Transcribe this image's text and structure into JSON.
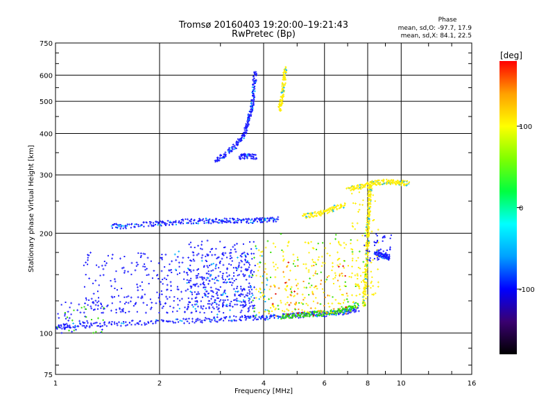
{
  "chart_data": {
    "type": "scatter",
    "title": "Tromsø 20160403 19:20:00–19:21:43",
    "subtitle": "RwPretec (Bp)",
    "xlabel": "Frequency [MHz]",
    "ylabel": "Stationary phase Virtual Height [km]",
    "xscale": "log",
    "yscale": "log",
    "xlim": [
      1,
      16
    ],
    "ylim": [
      75,
      750
    ],
    "xticks": [
      1,
      2,
      4,
      6,
      8,
      10,
      16
    ],
    "xtick_labels": [
      "1",
      "2",
      "4",
      "6",
      "8",
      "10",
      "16"
    ],
    "yticks": [
      75,
      100,
      200,
      300,
      400,
      500,
      600,
      750
    ],
    "ytick_labels": [
      "75",
      "100",
      "200",
      "300",
      "400",
      "500",
      "600",
      "750"
    ],
    "grid": true,
    "info": {
      "heading": "Phase",
      "line1": "mean, sd,O: -97.7, 17.9",
      "line2": "mean, sd,X:  84.1, 22.5"
    },
    "colorbar": {
      "label": "[deg]",
      "ticks": [
        100,
        0,
        -100
      ],
      "tick_labels": [
        "100",
        "0",
        "-100"
      ],
      "range": [
        -180,
        180
      ],
      "colormap": [
        "#000000",
        "#3a0070",
        "#0000ff",
        "#00a0ff",
        "#00ffff",
        "#00ff40",
        "#80ff00",
        "#ffff00",
        "#ffa000",
        "#ff0000"
      ]
    },
    "colors": {
      "blue": "#1a1aff",
      "cyan": "#00b4ff",
      "green": "#33dd00",
      "yellow": "#ffee00",
      "orange": "#ff8c00",
      "red": "#e00000",
      "purple": "#7a00c8",
      "black": "#000000"
    },
    "traces": [
      {
        "name": "E-region base trace",
        "color": "blue",
        "points": [
          [
            1.0,
            104
          ],
          [
            1.1,
            105
          ],
          [
            1.3,
            106
          ],
          [
            1.6,
            107
          ],
          [
            2.0,
            108
          ],
          [
            2.5,
            109
          ],
          [
            3.0,
            110
          ],
          [
            3.5,
            111
          ],
          [
            4.0,
            111
          ],
          [
            4.5,
            112
          ],
          [
            5.0,
            113
          ],
          [
            5.5,
            114
          ],
          [
            6.0,
            114
          ],
          [
            6.5,
            115
          ],
          [
            7.0,
            116
          ],
          [
            7.5,
            118
          ]
        ]
      },
      {
        "name": "E-region green/yellow",
        "color": "green",
        "points": [
          [
            4.5,
            112
          ],
          [
            5.0,
            113
          ],
          [
            5.5,
            114
          ],
          [
            6.0,
            115
          ],
          [
            6.5,
            116
          ],
          [
            7.0,
            118
          ],
          [
            7.5,
            122
          ]
        ]
      },
      {
        "name": "F-layer trace ~215 km",
        "color": "blue",
        "points": [
          [
            1.45,
            210
          ],
          [
            1.6,
            210
          ],
          [
            1.9,
            213
          ],
          [
            2.1,
            215
          ],
          [
            2.4,
            217
          ],
          [
            2.7,
            218
          ],
          [
            3.0,
            218
          ],
          [
            3.3,
            218
          ],
          [
            3.7,
            218
          ],
          [
            4.0,
            219
          ],
          [
            4.4,
            220
          ]
        ]
      },
      {
        "name": "Upper trace",
        "color": "blue",
        "points": [
          [
            2.9,
            330
          ],
          [
            3.1,
            345
          ],
          [
            3.3,
            365
          ],
          [
            3.45,
            385
          ],
          [
            3.55,
            410
          ],
          [
            3.62,
            440
          ],
          [
            3.68,
            470
          ],
          [
            3.72,
            505
          ],
          [
            3.76,
            560
          ],
          [
            3.78,
            620
          ]
        ]
      },
      {
        "name": "Upper trace second",
        "color": "blue",
        "points": [
          [
            3.4,
            340
          ],
          [
            3.6,
            342
          ],
          [
            3.8,
            340
          ]
        ]
      },
      {
        "name": "Yellow upper trace",
        "color": "yellow",
        "points": [
          [
            4.45,
            470
          ],
          [
            4.5,
            500
          ],
          [
            4.55,
            540
          ],
          [
            4.6,
            590
          ],
          [
            4.62,
            630
          ]
        ]
      },
      {
        "name": "Vertical trace",
        "color": "yellow",
        "points": [
          [
            7.8,
            120
          ],
          [
            7.85,
            135
          ],
          [
            7.9,
            150
          ],
          [
            7.95,
            170
          ],
          [
            8.0,
            190
          ],
          [
            8.0,
            210
          ],
          [
            8.05,
            230
          ],
          [
            8.1,
            250
          ],
          [
            8.1,
            270
          ],
          [
            8.2,
            280
          ]
        ]
      },
      {
        "name": "Top-right trace",
        "color": "yellow",
        "points": [
          [
            7.0,
            272
          ],
          [
            7.5,
            276
          ],
          [
            8.0,
            280
          ],
          [
            8.5,
            284
          ],
          [
            9.0,
            286
          ],
          [
            9.5,
            285
          ],
          [
            10.0,
            284
          ],
          [
            10.5,
            283
          ]
        ]
      },
      {
        "name": "Mid-right blue",
        "color": "blue",
        "points": [
          [
            8.4,
            175
          ],
          [
            8.7,
            172
          ],
          [
            9.0,
            170
          ],
          [
            9.3,
            168
          ]
        ]
      },
      {
        "name": "Mid-right yellow",
        "color": "yellow",
        "points": [
          [
            5.2,
            225
          ],
          [
            5.6,
            228
          ],
          [
            6.0,
            232
          ],
          [
            6.4,
            238
          ],
          [
            6.9,
            243
          ]
        ]
      }
    ],
    "clusters": [
      {
        "name": "lower blue cloud",
        "color": "blue",
        "x": [
          1.2,
          3.8
        ],
        "y": [
          115,
          175
        ],
        "count": 360
      },
      {
        "name": "steep blue cloud",
        "color": "blue",
        "x": [
          2.4,
          3.8
        ],
        "y": [
          120,
          190
        ],
        "count": 260
      },
      {
        "name": "cyan speckle",
        "color": "cyan",
        "x": [
          2.2,
          4.2
        ],
        "y": [
          110,
          180
        ],
        "count": 60
      },
      {
        "name": "yellow cloud",
        "color": "yellow",
        "x": [
          3.8,
          7.5
        ],
        "y": [
          115,
          190
        ],
        "count": 200
      },
      {
        "name": "orange speckle",
        "color": "orange",
        "x": [
          4.0,
          7.0
        ],
        "y": [
          112,
          160
        ],
        "count": 50
      },
      {
        "name": "green speckle",
        "color": "green",
        "x": [
          3.7,
          8.0
        ],
        "y": [
          112,
          200
        ],
        "count": 60
      },
      {
        "name": "red speckle",
        "color": "red",
        "x": [
          4.2,
          7.0
        ],
        "y": [
          112,
          180
        ],
        "count": 14
      },
      {
        "name": "right cloud",
        "color": "yellow",
        "x": [
          7.2,
          8.6
        ],
        "y": [
          130,
          270
        ],
        "count": 70
      },
      {
        "name": "right blue cloud",
        "color": "blue",
        "x": [
          7.8,
          9.5
        ],
        "y": [
          165,
          200
        ],
        "count": 40
      },
      {
        "name": "sparse blue",
        "color": "blue",
        "x": [
          1.0,
          1.4
        ],
        "y": [
          100,
          125
        ],
        "count": 40
      },
      {
        "name": "sparse green",
        "color": "green",
        "x": [
          1.0,
          1.4
        ],
        "y": [
          100,
          120
        ],
        "count": 18
      }
    ]
  }
}
